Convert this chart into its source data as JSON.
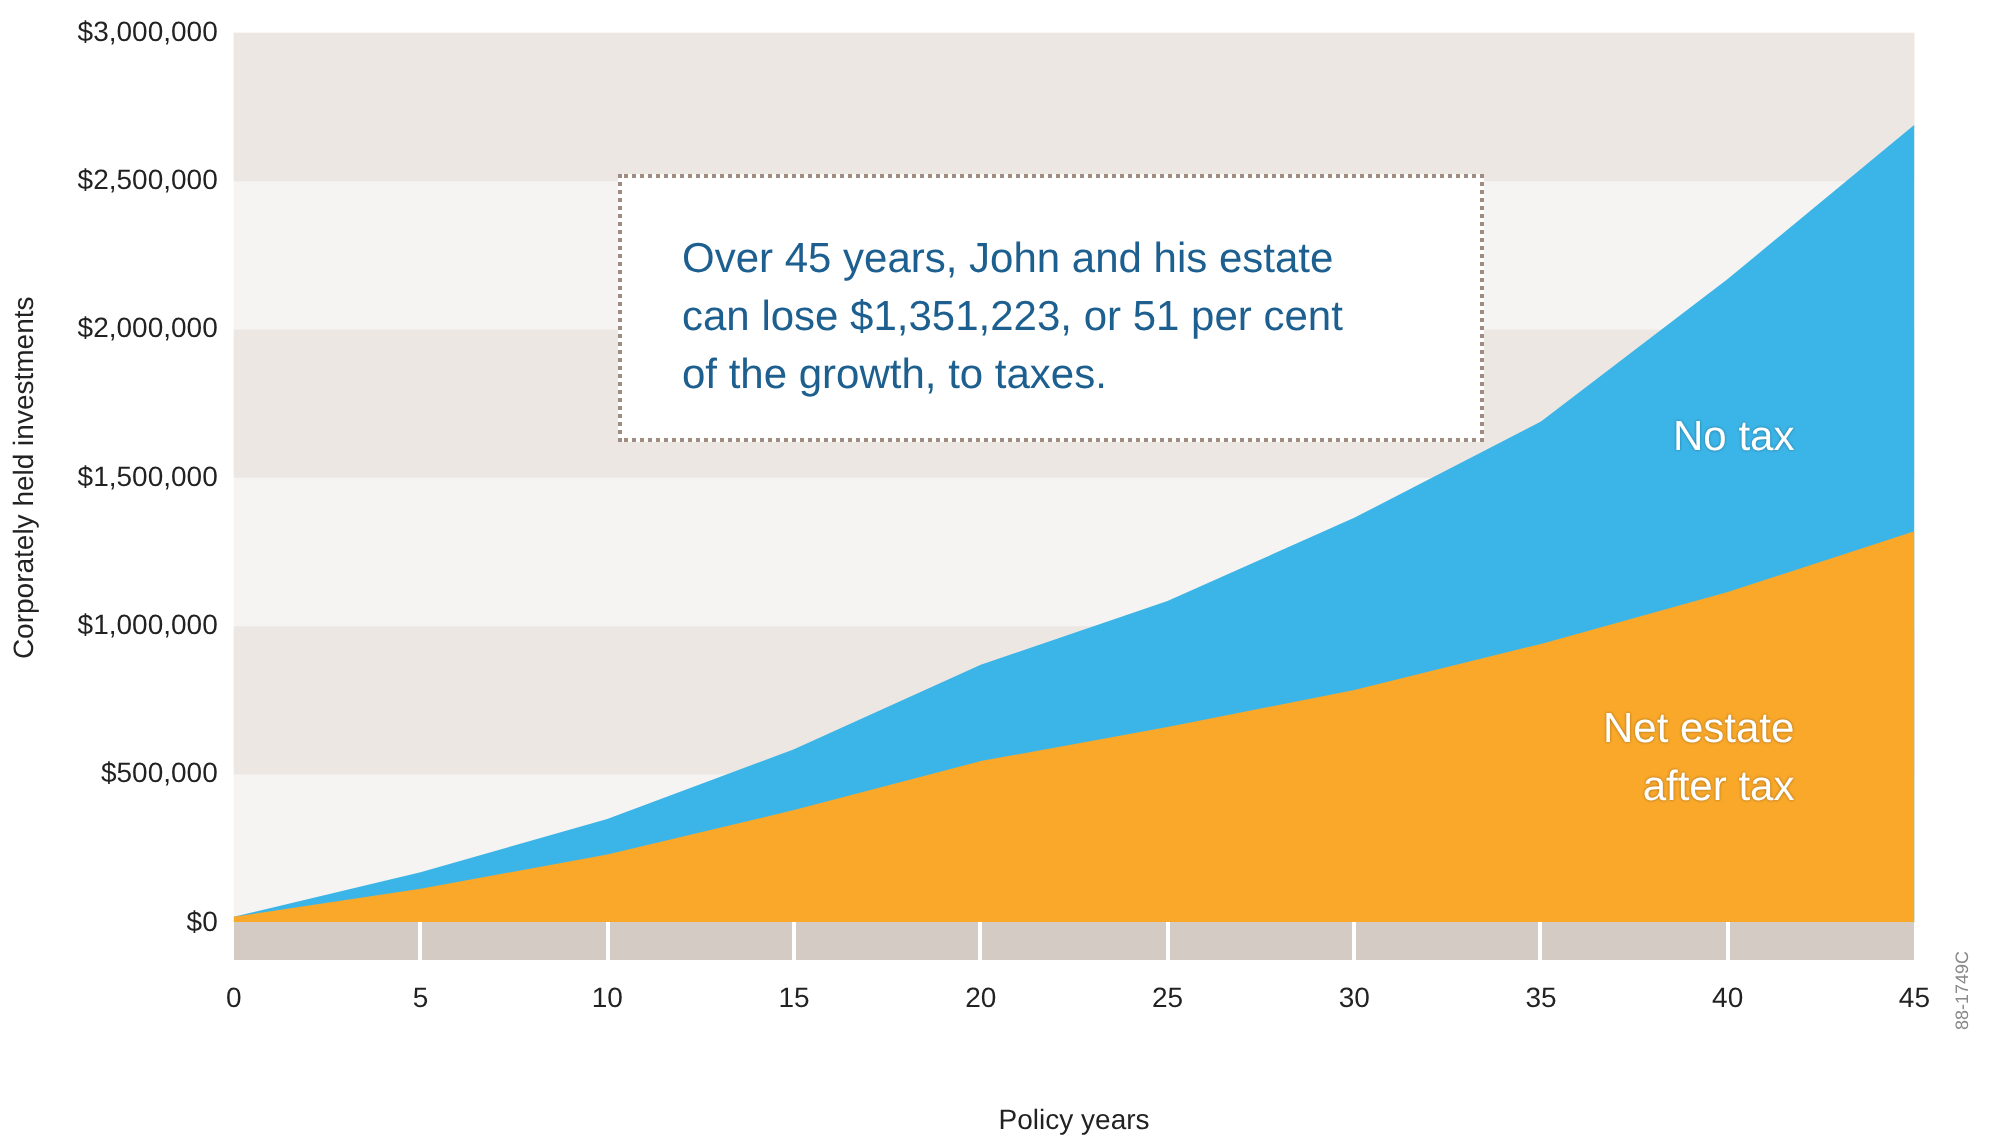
{
  "chart_data": {
    "type": "area",
    "xlabel": "Policy years",
    "ylabel": "Corporately held investments",
    "x": [
      0,
      5,
      10,
      15,
      20,
      25,
      30,
      35,
      40,
      45
    ],
    "series": [
      {
        "name": "No tax",
        "color": "#3bb5e8",
        "values": [
          20000,
          170000,
          350000,
          585000,
          870000,
          1085000,
          1365000,
          1690000,
          2170000,
          2690000
        ]
      },
      {
        "name": "Net estate after tax",
        "color": "#f9a82a",
        "values": [
          20000,
          115000,
          230000,
          380000,
          545000,
          660000,
          785000,
          940000,
          1115000,
          1320000
        ]
      }
    ],
    "xlim": [
      0,
      45
    ],
    "xticks": [
      0,
      5,
      10,
      15,
      20,
      25,
      30,
      35,
      40,
      45
    ],
    "ylim": [
      0,
      3000000
    ],
    "bands": [
      {
        "axis": "y",
        "from": 500000,
        "to": 1000000,
        "color": "#ede7e3"
      },
      {
        "axis": "y",
        "from": 1500000,
        "to": 2000000,
        "color": "#ede7e3"
      },
      {
        "axis": "y",
        "from": 2500000,
        "to": 3000000,
        "color": "#ede7e3"
      }
    ],
    "yticks": [
      {
        "value": 0,
        "label": "$0"
      },
      {
        "value": 500000,
        "label": "$500,000"
      },
      {
        "value": 1000000,
        "label": "$1,000,000"
      },
      {
        "value": 1500000,
        "label": "$1,500,000"
      },
      {
        "value": 2000000,
        "label": "$2,000,000"
      },
      {
        "value": 2500000,
        "label": "$2,500,000"
      },
      {
        "value": 3000000,
        "label": "$3,000,000"
      }
    ],
    "legend": false,
    "marker": "none",
    "annotations": [
      "Over 45 years, John and his estate can lose $1,351,223, or 51 per cent of the growth, to taxes.",
      "88-1749C"
    ]
  }
}
